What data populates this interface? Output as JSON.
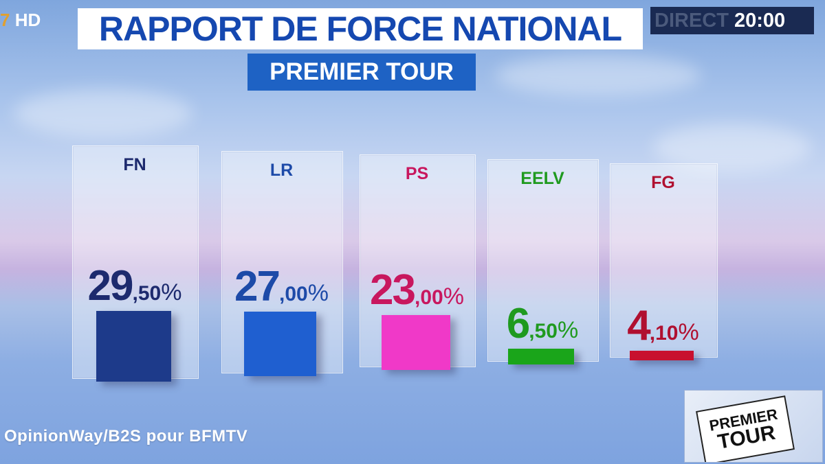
{
  "channel": {
    "logo_text": "HD"
  },
  "header": {
    "title": "RAPPORT DE FORCE NATIONAL",
    "subtitle": "PREMIER TOUR",
    "live_label": "DIRECT",
    "time": "20:00"
  },
  "source": {
    "text": "OpinionWay/B2S pour BFMTV"
  },
  "badge": {
    "line1": "PREMIER",
    "line2": "TOUR"
  },
  "chart_data": {
    "type": "bar",
    "title": "RAPPORT DE FORCE NATIONAL",
    "subtitle": "PREMIER TOUR",
    "categories": [
      "FN",
      "LR",
      "PS",
      "EELV",
      "FG"
    ],
    "values": [
      29.5,
      27.0,
      23.0,
      6.5,
      4.1
    ],
    "labels": [
      {
        "int": "29",
        "dec": ",50",
        "sym": "%"
      },
      {
        "int": "27",
        "dec": ",00",
        "sym": "%"
      },
      {
        "int": "23",
        "dec": ",00",
        "sym": "%"
      },
      {
        "int": "6",
        "dec": ",50",
        "sym": "%"
      },
      {
        "int": "4",
        "dec": ",10",
        "sym": "%"
      }
    ],
    "colors": [
      "#1d3a8a",
      "#1f5fd0",
      "#f039c8",
      "#1aa51a",
      "#c8102e"
    ],
    "label_colors": [
      "#1d2a6e",
      "#1d4aa8",
      "#c8175e",
      "#1f9a1f",
      "#b01030"
    ],
    "ylim": [
      0,
      30
    ]
  }
}
